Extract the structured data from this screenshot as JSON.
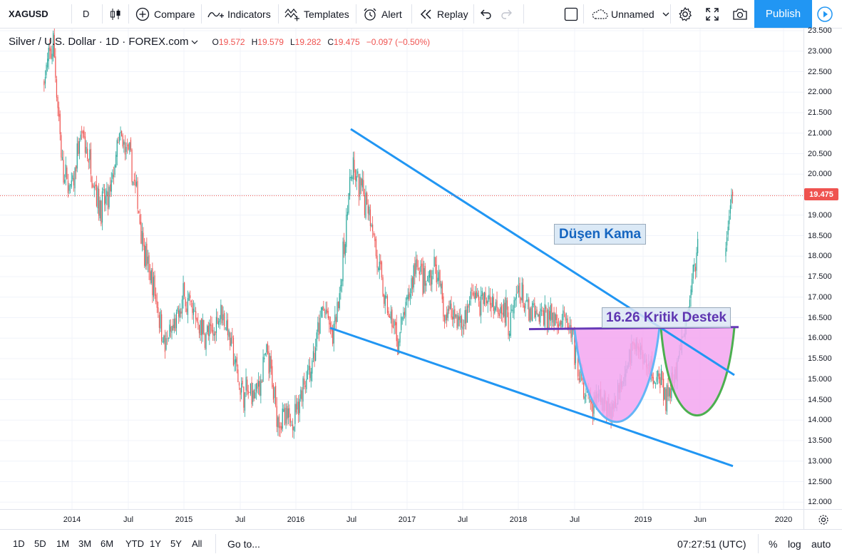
{
  "toolbar": {
    "symbol": "XAGUSD",
    "interval": "D",
    "compare_label": "Compare",
    "indicators_label": "Indicators",
    "templates_label": "Templates",
    "alert_label": "Alert",
    "replay_label": "Replay",
    "layout_name": "Unnamed",
    "publish_label": "Publish"
  },
  "legend": {
    "title": "Silver / U.S. Dollar · 1D · FOREX.com",
    "open_label": "O",
    "open": "19.572",
    "high_label": "H",
    "high": "19.579",
    "low_label": "L",
    "low": "19.282",
    "close_label": "C",
    "close": "19.475",
    "change": "−0.097 (−0.50%)"
  },
  "last_price": "19.475",
  "annotations": {
    "wedge": "Düşen Kama",
    "support": "16.26 Kritik Destek"
  },
  "time_scale": [
    "2014",
    "Jul",
    "2015",
    "Jul",
    "2016",
    "Jul",
    "2017",
    "Jul",
    "2018",
    "Jul",
    "2019",
    "Jun",
    "2020"
  ],
  "price_scale": [
    "23.500",
    "23.000",
    "22.500",
    "22.000",
    "21.500",
    "21.000",
    "20.500",
    "20.000",
    "19.500",
    "19.000",
    "18.500",
    "18.000",
    "17.500",
    "17.000",
    "16.500",
    "16.000",
    "15.500",
    "15.000",
    "14.500",
    "14.000",
    "13.500",
    "13.000",
    "12.500",
    "12.000"
  ],
  "bottombar": {
    "ranges": [
      "1D",
      "5D",
      "1M",
      "3M",
      "6M",
      "YTD",
      "1Y",
      "5Y",
      "All"
    ],
    "goto_label": "Go to...",
    "clock": "07:27:51 (UTC)",
    "percent_label": "%",
    "log_label": "log",
    "auto_label": "auto"
  },
  "colors": {
    "up": "#26a69a",
    "down": "#ef5350",
    "trendline": "#2196f3",
    "support_line": "#673ab7",
    "cup_fill": "#f3a6f0",
    "cup_outline_1": "#64b5f6",
    "cup_outline_2": "#4caf50",
    "accent": "#2196f3"
  },
  "chart_data": {
    "type": "candlestick",
    "symbol": "XAGUSD",
    "x": [
      "2013-10",
      "2013-11",
      "2013-12",
      "2014-01",
      "2014-02",
      "2014-03",
      "2014-04",
      "2014-05",
      "2014-06",
      "2014-07",
      "2014-08",
      "2014-09",
      "2014-10",
      "2014-11",
      "2014-12",
      "2015-01",
      "2015-02",
      "2015-03",
      "2015-04",
      "2015-05",
      "2015-06",
      "2015-07",
      "2015-08",
      "2015-09",
      "2015-10",
      "2015-11",
      "2015-12",
      "2016-01",
      "2016-02",
      "2016-03",
      "2016-04",
      "2016-05",
      "2016-06",
      "2016-07",
      "2016-08",
      "2016-09",
      "2016-10",
      "2016-11",
      "2016-12",
      "2017-01",
      "2017-02",
      "2017-03",
      "2017-04",
      "2017-05",
      "2017-06",
      "2017-07",
      "2017-08",
      "2017-09",
      "2017-10",
      "2017-11",
      "2017-12",
      "2018-01",
      "2018-02",
      "2018-03",
      "2018-04",
      "2018-05",
      "2018-06",
      "2018-07",
      "2018-08",
      "2018-09",
      "2018-10",
      "2018-11",
      "2018-12",
      "2019-01",
      "2019-02",
      "2019-03",
      "2019-04",
      "2019-05",
      "2019-06",
      "2019-07",
      "2019-08"
    ],
    "y": [
      22.3,
      23.2,
      20.0,
      19.6,
      21.0,
      20.2,
      19.2,
      19.4,
      20.8,
      20.6,
      19.4,
      17.8,
      17.0,
      15.8,
      16.2,
      17.0,
      16.6,
      16.2,
      16.0,
      16.8,
      16.0,
      14.8,
      14.6,
      14.8,
      15.6,
      14.2,
      13.9,
      14.2,
      15.0,
      15.5,
      16.8,
      16.0,
      17.6,
      20.1,
      19.6,
      19.2,
      17.6,
      16.6,
      15.9,
      16.8,
      17.9,
      17.2,
      17.8,
      16.6,
      16.7,
      16.3,
      17.1,
      16.9,
      16.9,
      16.9,
      16.4,
      17.2,
      16.6,
      16.5,
      16.6,
      16.5,
      16.5,
      15.7,
      14.6,
      14.3,
      14.6,
      14.2,
      15.0,
      15.7,
      15.8,
      15.2,
      15.0,
      14.5,
      15.3,
      16.3,
      18.0
    ],
    "last": 19.475,
    "ylim": [
      11.95,
      23.6
    ],
    "support_level": 16.26
  }
}
